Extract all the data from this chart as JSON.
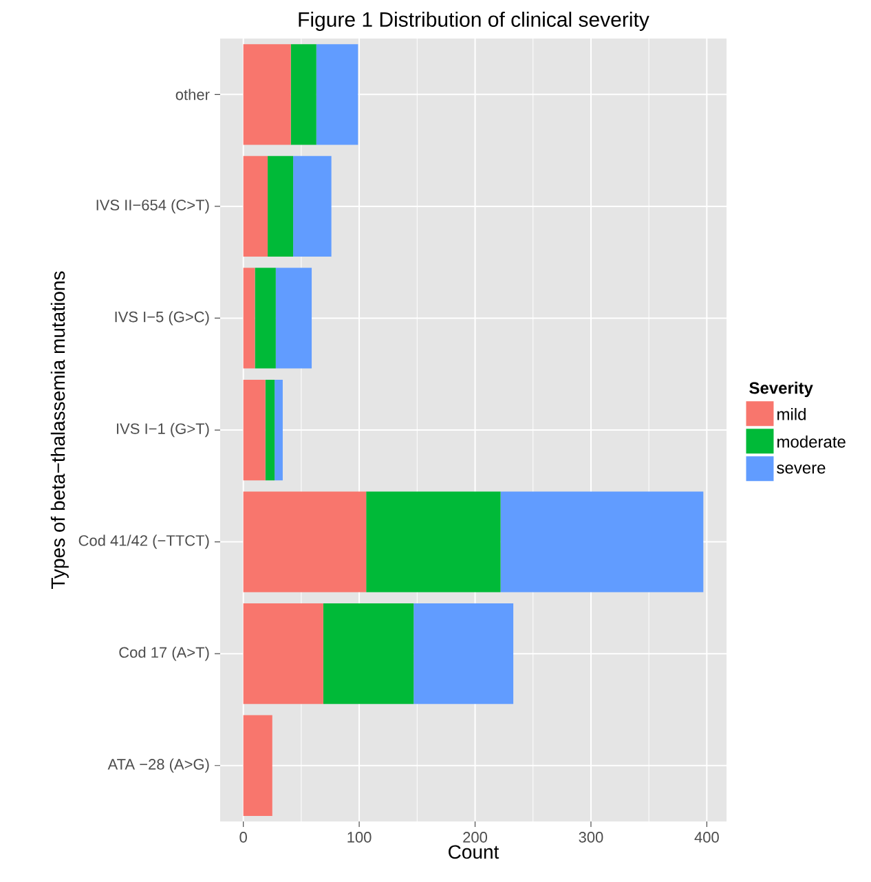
{
  "chart_data": {
    "type": "bar",
    "orientation": "horizontal",
    "stacked": true,
    "title": "Figure 1 Distribution of clinical severity",
    "xlabel": "Count",
    "ylabel": "Types of beta−thalassemia mutations",
    "legend_title": "Severity",
    "categories": [
      "other",
      "IVS II−654 (C>T)",
      "IVS I−5 (G>C)",
      "IVS I−1 (G>T)",
      "Cod 41/42 (−TTCT)",
      "Cod 17 (A>T)",
      "ATA −28 (A>G)"
    ],
    "series": [
      {
        "name": "mild",
        "color": "#f8766d",
        "values": [
          41,
          21,
          10,
          19,
          106,
          69,
          25
        ]
      },
      {
        "name": "moderate",
        "color": "#00ba38",
        "values": [
          22,
          22,
          18,
          8,
          116,
          78,
          null
        ]
      },
      {
        "name": "severe",
        "color": "#619cff",
        "values": [
          36,
          33,
          31,
          7,
          175,
          86,
          null
        ]
      }
    ],
    "xlim": [
      -20,
      417
    ],
    "xticks": [
      0,
      100,
      200,
      300,
      400
    ],
    "grid": true,
    "legend": "right"
  }
}
